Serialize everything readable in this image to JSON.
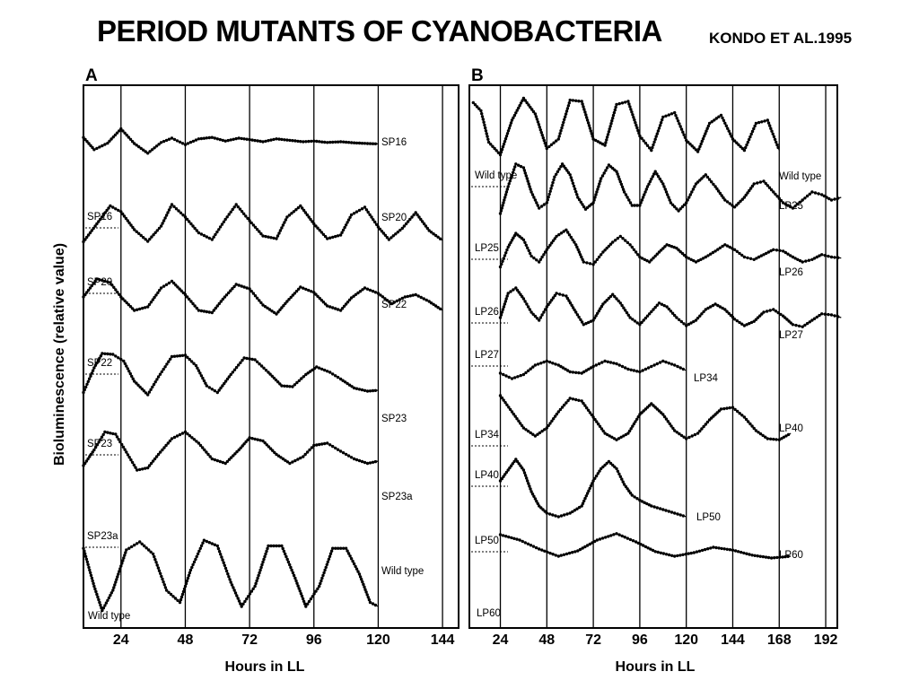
{
  "title": "PERIOD MUTANTS OF CYANOBACTERIA",
  "subtitle": "KONDO ET AL.1995",
  "chart_data": [
    {
      "panel": "A",
      "type": "line",
      "ylabel": "Bioluminescence (relative value)",
      "xlabel": "Hours in LL",
      "xlim": [
        10,
        150
      ],
      "xticks": [
        24,
        48,
        72,
        96,
        120,
        144
      ],
      "series": [
        {
          "left_label": "",
          "right_label": "SP16",
          "x": [
            10,
            14,
            19,
            24,
            29,
            34,
            39,
            43,
            48,
            53,
            58,
            63,
            68,
            72,
            77,
            82,
            87,
            92,
            96,
            101,
            106,
            111,
            116,
            120
          ],
          "y": [
            0.62,
            0.28,
            0.46,
            0.86,
            0.45,
            0.18,
            0.48,
            0.6,
            0.42,
            0.58,
            0.62,
            0.52,
            0.6,
            0.56,
            0.5,
            0.58,
            0.54,
            0.5,
            0.52,
            0.48,
            0.5,
            0.47,
            0.45,
            0.44
          ]
        },
        {
          "left_label": "SP16",
          "right_label": "SP20",
          "x": [
            10,
            15,
            20,
            24,
            29,
            34,
            39,
            43,
            48,
            53,
            58,
            63,
            67,
            72,
            77,
            82,
            86,
            91,
            96,
            101,
            106,
            110,
            115,
            120,
            124,
            129,
            134,
            139,
            144
          ],
          "y": [
            0.05,
            0.45,
            0.85,
            0.72,
            0.32,
            0.06,
            0.4,
            0.88,
            0.6,
            0.25,
            0.1,
            0.55,
            0.88,
            0.52,
            0.18,
            0.12,
            0.6,
            0.85,
            0.45,
            0.12,
            0.2,
            0.65,
            0.82,
            0.38,
            0.1,
            0.35,
            0.7,
            0.3,
            0.08
          ]
        },
        {
          "left_label": "SP20",
          "right_label": "SP22",
          "x": [
            10,
            15,
            20,
            24,
            29,
            34,
            39,
            43,
            48,
            53,
            58,
            62,
            67,
            72,
            77,
            82,
            86,
            91,
            96,
            101,
            106,
            110,
            115,
            120,
            125,
            130,
            134,
            139,
            144
          ],
          "y": [
            0.5,
            0.9,
            0.82,
            0.5,
            0.2,
            0.28,
            0.7,
            0.85,
            0.55,
            0.2,
            0.15,
            0.45,
            0.78,
            0.68,
            0.32,
            0.12,
            0.4,
            0.72,
            0.6,
            0.3,
            0.2,
            0.48,
            0.7,
            0.58,
            0.35,
            0.5,
            0.55,
            0.4,
            0.2
          ]
        },
        {
          "left_label": "SP22",
          "right_label": "SP23",
          "x": [
            10,
            14,
            17,
            21,
            25,
            29,
            34,
            38,
            43,
            48,
            52,
            56,
            60,
            65,
            70,
            74,
            79,
            84,
            88,
            93,
            97,
            102,
            106,
            111,
            116,
            120
          ],
          "y": [
            0.05,
            0.6,
            0.92,
            0.9,
            0.75,
            0.3,
            0.0,
            0.4,
            0.85,
            0.88,
            0.65,
            0.2,
            0.05,
            0.45,
            0.82,
            0.78,
            0.5,
            0.2,
            0.18,
            0.45,
            0.62,
            0.5,
            0.35,
            0.15,
            0.08,
            0.1
          ]
        },
        {
          "left_label": "SP23",
          "right_label": "SP23a",
          "x": [
            10,
            14,
            18,
            22,
            26,
            30,
            34,
            38,
            43,
            48,
            53,
            58,
            63,
            68,
            72,
            77,
            82,
            87,
            92,
            96,
            101,
            106,
            111,
            116,
            120
          ],
          "y": [
            0.1,
            0.45,
            0.85,
            0.8,
            0.4,
            0.0,
            0.05,
            0.35,
            0.7,
            0.85,
            0.6,
            0.25,
            0.15,
            0.45,
            0.72,
            0.65,
            0.35,
            0.15,
            0.3,
            0.55,
            0.6,
            0.42,
            0.25,
            0.15,
            0.2
          ]
        },
        {
          "left_label": "SP23a",
          "right_label": "Wild type",
          "x": [
            10,
            14,
            17,
            21,
            26,
            31,
            36,
            41,
            46,
            50,
            55,
            60,
            65,
            69,
            74,
            79,
            84,
            89,
            93,
            98,
            103,
            108,
            113,
            117,
            120
          ],
          "y": [
            0.82,
            0.35,
            0.05,
            0.3,
            0.8,
            0.9,
            0.75,
            0.3,
            0.15,
            0.55,
            0.92,
            0.85,
            0.4,
            0.1,
            0.35,
            0.85,
            0.85,
            0.45,
            0.1,
            0.35,
            0.82,
            0.82,
            0.5,
            0.15,
            0.1
          ]
        }
      ],
      "bottom_label": "Wild type"
    },
    {
      "panel": "B",
      "type": "line",
      "xlabel": "Hours in LL",
      "xlim": [
        8,
        198
      ],
      "xticks": [
        24,
        48,
        72,
        96,
        120,
        144,
        168,
        192
      ],
      "series": [
        {
          "left_label": "",
          "right_label": "Wild type",
          "x": [
            10,
            14,
            18,
            24,
            30,
            36,
            42,
            48,
            54,
            60,
            66,
            72,
            78,
            84,
            90,
            96,
            102,
            108,
            114,
            120,
            126,
            132,
            138,
            144,
            150,
            156,
            162,
            168
          ],
          "y": [
            0.88,
            0.75,
            0.25,
            0.05,
            0.6,
            0.95,
            0.7,
            0.15,
            0.3,
            0.92,
            0.9,
            0.3,
            0.2,
            0.85,
            0.9,
            0.35,
            0.12,
            0.65,
            0.72,
            0.28,
            0.1,
            0.55,
            0.68,
            0.3,
            0.12,
            0.55,
            0.6,
            0.12
          ]
        },
        {
          "left_label": "Wild type",
          "right_label": "LP25",
          "x": [
            24,
            28,
            32,
            36,
            40,
            44,
            48,
            52,
            56,
            60,
            64,
            68,
            72,
            76,
            80,
            84,
            88,
            92,
            96,
            100,
            104,
            108,
            112,
            116,
            120,
            125,
            130,
            135,
            140,
            145,
            150,
            155,
            160,
            165,
            170,
            175,
            180,
            185,
            190,
            195,
            200
          ],
          "y": [
            0.0,
            0.5,
            0.92,
            0.85,
            0.4,
            0.1,
            0.2,
            0.68,
            0.92,
            0.72,
            0.3,
            0.08,
            0.2,
            0.65,
            0.9,
            0.78,
            0.4,
            0.15,
            0.15,
            0.5,
            0.78,
            0.55,
            0.2,
            0.05,
            0.2,
            0.55,
            0.72,
            0.5,
            0.25,
            0.12,
            0.3,
            0.55,
            0.6,
            0.4,
            0.2,
            0.1,
            0.25,
            0.4,
            0.35,
            0.25,
            0.3
          ]
        },
        {
          "left_label": "LP25",
          "right_label": "LP26",
          "x": [
            24,
            28,
            32,
            36,
            40,
            44,
            48,
            53,
            58,
            63,
            67,
            72,
            77,
            82,
            86,
            91,
            96,
            101,
            106,
            110,
            115,
            120,
            125,
            130,
            135,
            140,
            145,
            150,
            155,
            160,
            165,
            170,
            175,
            180,
            185,
            190,
            195,
            200
          ],
          "y": [
            0.1,
            0.5,
            0.78,
            0.65,
            0.32,
            0.2,
            0.45,
            0.72,
            0.85,
            0.55,
            0.2,
            0.15,
            0.4,
            0.6,
            0.72,
            0.55,
            0.3,
            0.2,
            0.4,
            0.55,
            0.48,
            0.3,
            0.2,
            0.3,
            0.42,
            0.55,
            0.45,
            0.3,
            0.25,
            0.35,
            0.45,
            0.42,
            0.3,
            0.2,
            0.25,
            0.35,
            0.3,
            0.28
          ]
        },
        {
          "left_label": "LP26",
          "right_label": "LP27",
          "x": [
            24,
            28,
            32,
            36,
            40,
            44,
            48,
            53,
            58,
            63,
            67,
            72,
            77,
            82,
            86,
            91,
            96,
            101,
            106,
            110,
            115,
            120,
            125,
            130,
            135,
            140,
            145,
            150,
            155,
            160,
            165,
            170,
            175,
            180,
            185,
            190,
            195,
            200
          ],
          "y": [
            0.35,
            0.8,
            0.9,
            0.7,
            0.45,
            0.3,
            0.55,
            0.8,
            0.75,
            0.45,
            0.22,
            0.3,
            0.6,
            0.78,
            0.62,
            0.35,
            0.22,
            0.42,
            0.62,
            0.55,
            0.35,
            0.2,
            0.3,
            0.5,
            0.6,
            0.5,
            0.32,
            0.2,
            0.28,
            0.45,
            0.5,
            0.38,
            0.22,
            0.18,
            0.3,
            0.42,
            0.4,
            0.35
          ]
        },
        {
          "left_label": "LP27",
          "right_label": "LP34",
          "x": [
            24,
            30,
            36,
            42,
            48,
            54,
            60,
            66,
            72,
            78,
            84,
            90,
            96,
            102,
            108,
            114,
            120
          ],
          "y": [
            0.3,
            0.1,
            0.25,
            0.6,
            0.75,
            0.6,
            0.35,
            0.3,
            0.55,
            0.75,
            0.65,
            0.45,
            0.35,
            0.55,
            0.75,
            0.6,
            0.4
          ]
        },
        {
          "left_label": "LP34",
          "right_label": "LP40",
          "x": [
            24,
            30,
            36,
            42,
            48,
            54,
            60,
            66,
            72,
            78,
            84,
            90,
            96,
            102,
            108,
            114,
            120,
            126,
            132,
            138,
            144,
            150,
            156,
            162,
            168,
            174
          ],
          "y": [
            0.9,
            0.6,
            0.3,
            0.15,
            0.3,
            0.6,
            0.85,
            0.8,
            0.5,
            0.2,
            0.08,
            0.2,
            0.55,
            0.75,
            0.55,
            0.25,
            0.1,
            0.2,
            0.45,
            0.65,
            0.68,
            0.5,
            0.25,
            0.1,
            0.08,
            0.2
          ]
        },
        {
          "left_label": "LP40",
          "right_label": "LP50",
          "x": [
            24,
            28,
            32,
            36,
            40,
            44,
            48,
            54,
            60,
            66,
            72,
            76,
            80,
            84,
            88,
            92,
            96,
            102,
            108,
            114,
            120
          ],
          "y": [
            0.55,
            0.7,
            0.85,
            0.7,
            0.4,
            0.2,
            0.1,
            0.05,
            0.1,
            0.2,
            0.55,
            0.72,
            0.82,
            0.72,
            0.5,
            0.35,
            0.28,
            0.2,
            0.15,
            0.1,
            0.05
          ]
        },
        {
          "left_label": "LP50",
          "right_label": "LP60",
          "x": [
            24,
            34,
            44,
            54,
            64,
            74,
            84,
            94,
            104,
            114,
            124,
            134,
            144,
            154,
            164,
            174
          ],
          "y": [
            0.85,
            0.7,
            0.45,
            0.25,
            0.4,
            0.7,
            0.88,
            0.65,
            0.38,
            0.25,
            0.35,
            0.5,
            0.42,
            0.28,
            0.2,
            0.25
          ]
        }
      ],
      "bottom_label": "LP60"
    }
  ],
  "colors": {
    "ink": "#000000",
    "background": "#ffffff"
  }
}
